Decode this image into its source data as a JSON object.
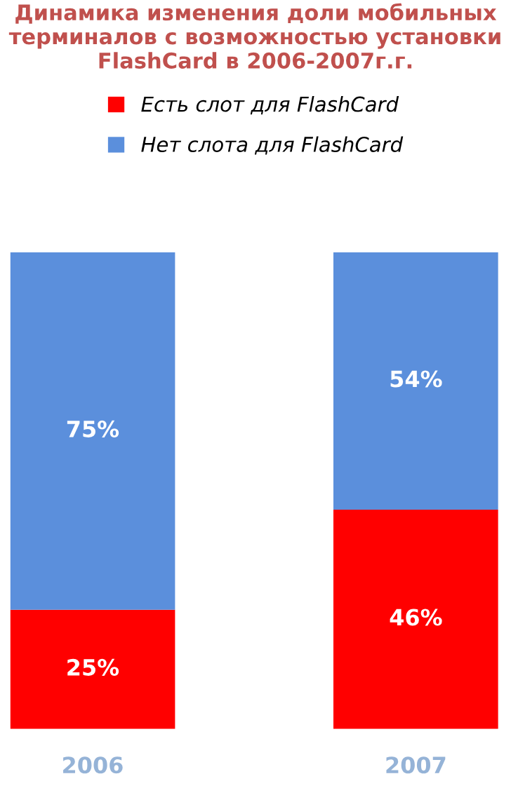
{
  "chart_data": {
    "type": "bar",
    "stacked": true,
    "title": "Динамика изменения доли мобильных терминалов с возможностью установки FlashCard в 2006-2007г.г.",
    "categories": [
      "2006",
      "2007"
    ],
    "series": [
      {
        "name": "Есть слот для FlashCard",
        "color": "#ff0000",
        "values": [
          25,
          46
        ],
        "value_labels": [
          "25%",
          "46%"
        ]
      },
      {
        "name": "Нет слота для FlashCard",
        "color": "#5b8fdc",
        "values": [
          75,
          54
        ],
        "value_labels": [
          "75%",
          "54%"
        ]
      }
    ],
    "legend": "top",
    "grid": false
  }
}
